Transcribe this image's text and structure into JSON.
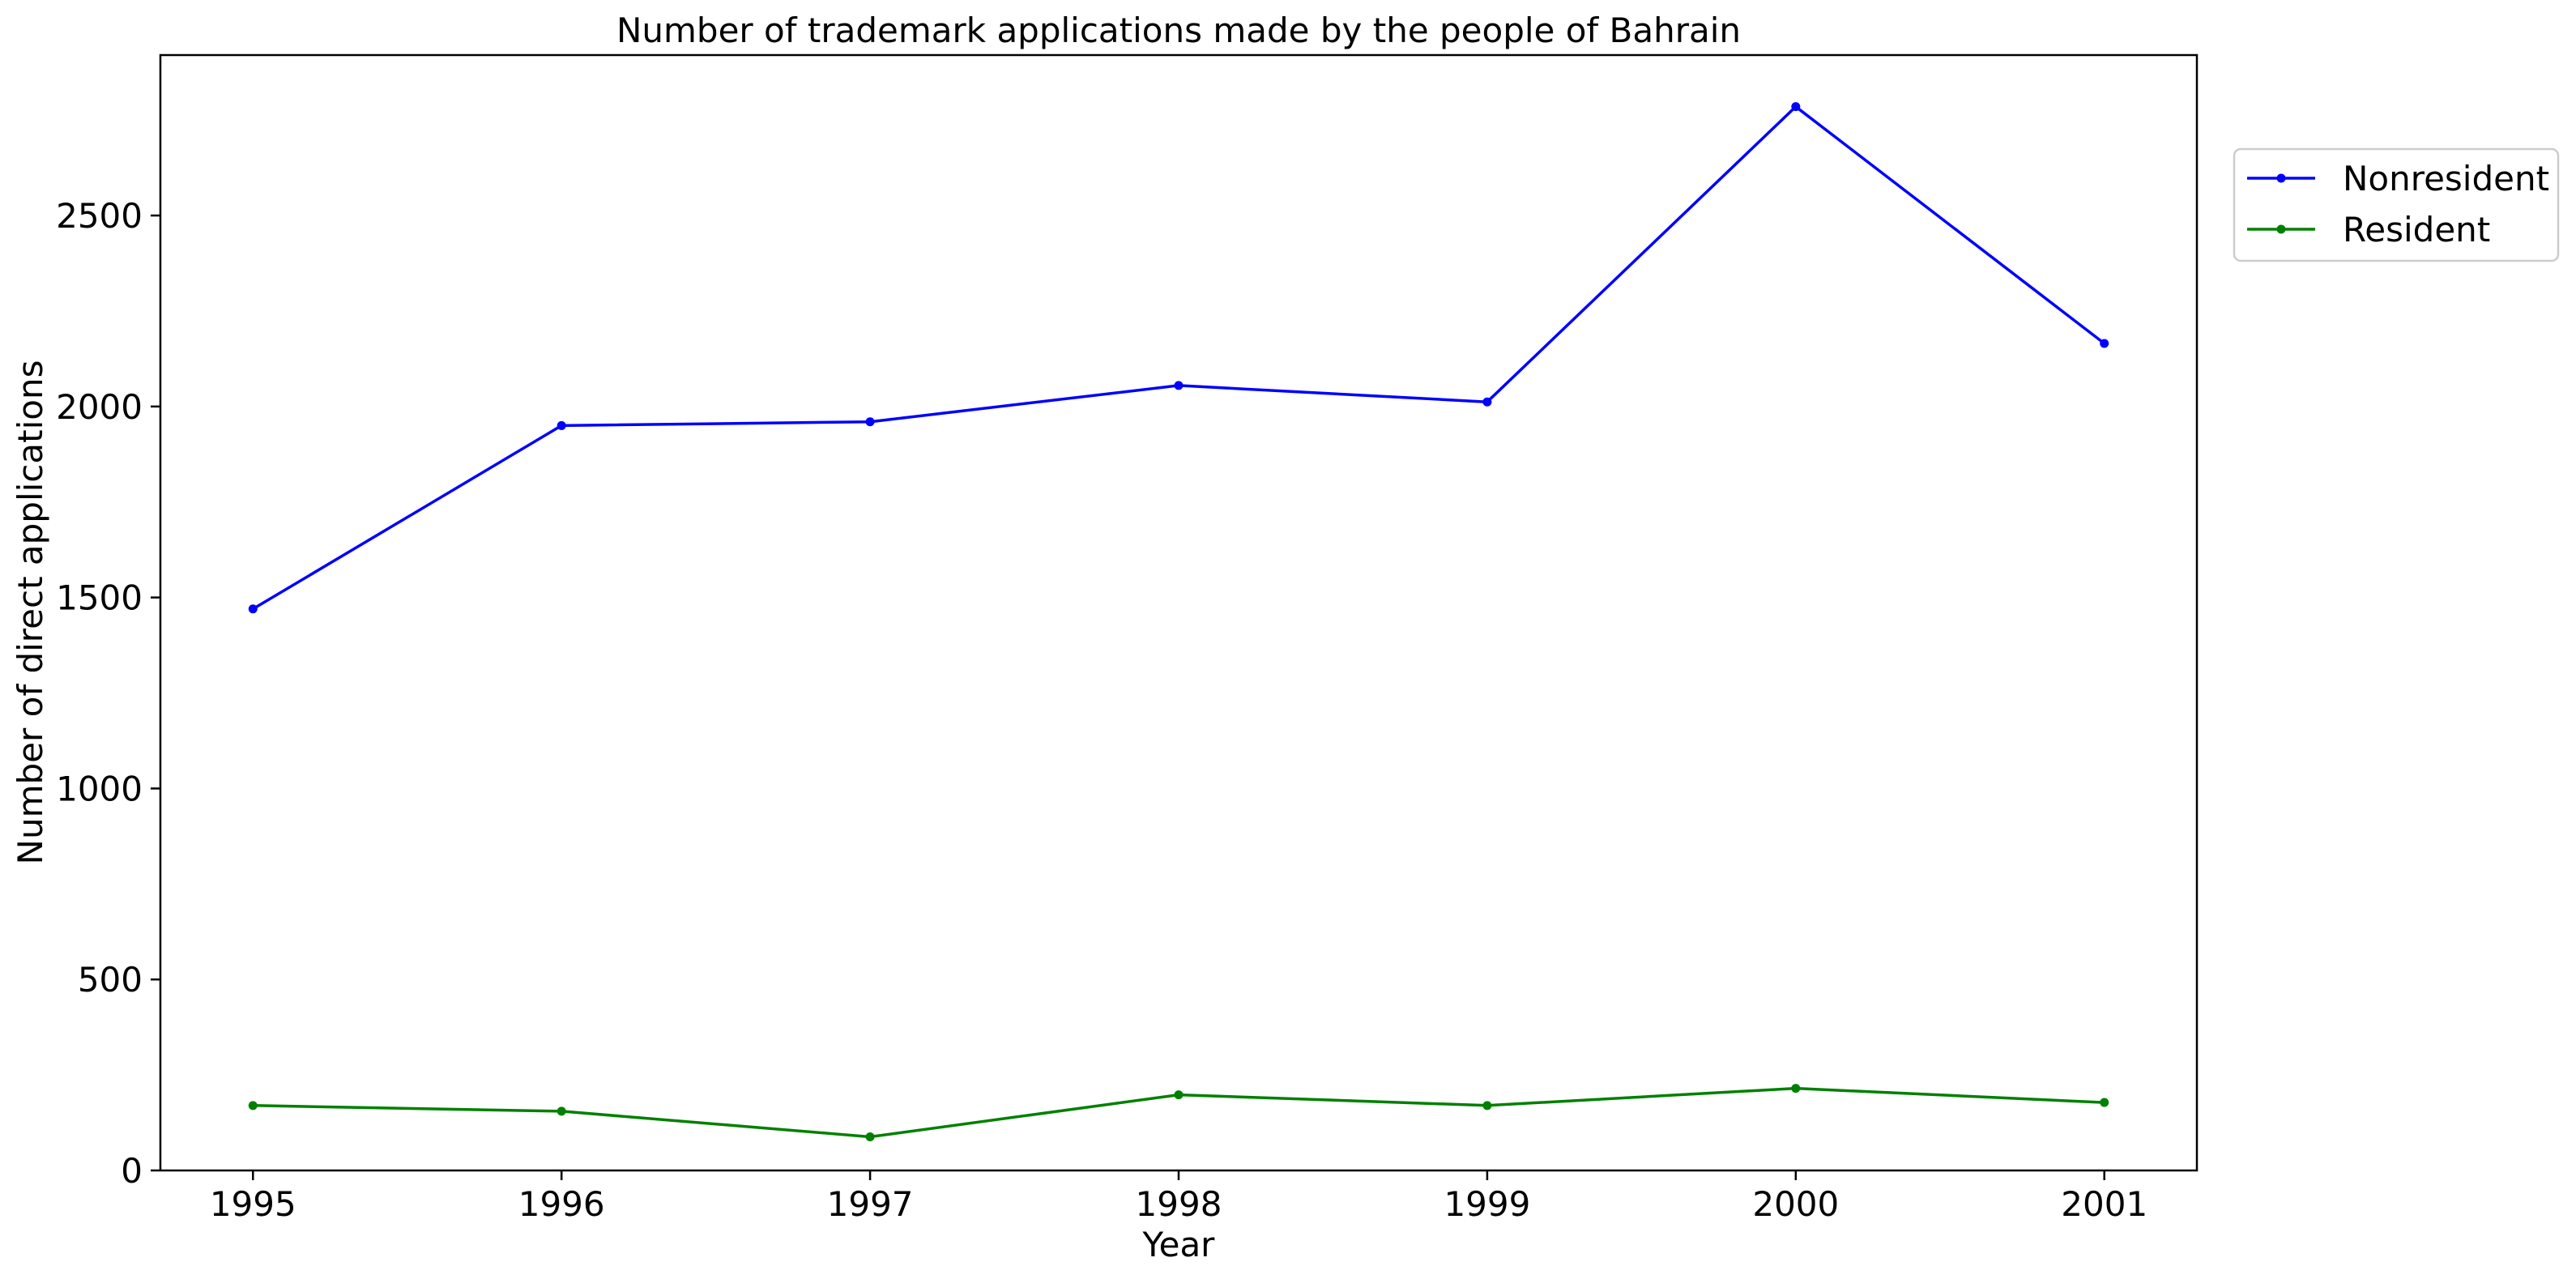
{
  "chart_data": {
    "type": "line",
    "title": "Number of trademark applications made by the people of Bahrain",
    "xlabel": "Year",
    "ylabel": "Number of direct applications",
    "categories": [
      "1995",
      "1996",
      "1997",
      "1998",
      "1999",
      "2000",
      "2001"
    ],
    "xlim": [
      1994.7,
      2001.3
    ],
    "ylim": [
      0,
      2920
    ],
    "yticks": [
      0,
      500,
      1000,
      1500,
      2000,
      2500
    ],
    "grid": false,
    "legend_position": "upper right, outside plot",
    "series": [
      {
        "name": "Nonresident",
        "color": "#0000ff",
        "values": [
          1470,
          1950,
          1960,
          2055,
          2012,
          2785,
          2165
        ]
      },
      {
        "name": "Resident",
        "color": "#008000",
        "values": [
          170,
          155,
          88,
          198,
          170,
          215,
          178
        ]
      }
    ]
  }
}
